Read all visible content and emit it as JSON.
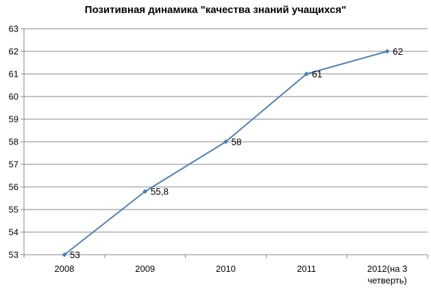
{
  "chart_data": {
    "type": "line",
    "title": "Позитивная динамика \"качества знаний учащихся\"",
    "xlabel": "",
    "ylabel": "",
    "categories": [
      "2008",
      "2009",
      "2010",
      "2011",
      "2012(на 3|четверть)"
    ],
    "series": [
      {
        "values": [
          53,
          55.8,
          58,
          61,
          62
        ],
        "labels": [
          "53",
          "55,8",
          "58",
          "61",
          "62"
        ]
      }
    ],
    "ylim": [
      53,
      63
    ],
    "yticks": [
      53,
      54,
      55,
      56,
      57,
      58,
      59,
      60,
      61,
      62,
      63
    ],
    "grid": true,
    "legend": "none",
    "colors": {
      "line": "#4a7ebb",
      "marker": "#4a7ebb",
      "grid": "#868686",
      "axis": "#868686"
    }
  }
}
